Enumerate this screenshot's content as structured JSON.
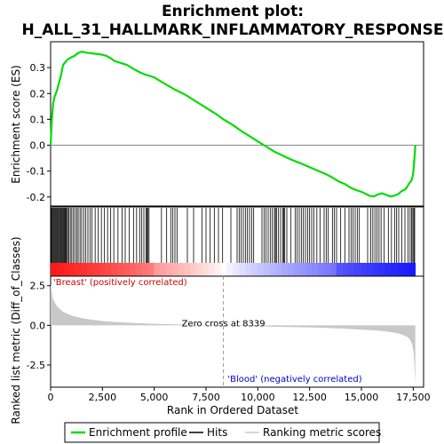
{
  "chart_data": {
    "type": "line",
    "title_line1": "Enrichment plot:",
    "title_line2": "H_ALL_31_HALLMARK_INFLAMMATORY_RESPONSE",
    "xlabel": "Rank in Ordered Dataset",
    "ylabel_top": "Enrichment score (ES)",
    "ylabel_bottom": "Ranked list metric (Diff_of_Classes)",
    "xlim": [
      0,
      18000
    ],
    "x_ticks": [
      0,
      2500,
      5000,
      7500,
      10000,
      12500,
      15000,
      17500
    ],
    "x_tick_labels": [
      "0",
      "2,500",
      "5,000",
      "7,500",
      "10,000",
      "12,500",
      "15,000",
      "17,500"
    ],
    "es_ylim": [
      -0.235,
      0.4
    ],
    "es_ticks": [
      -0.2,
      -0.1,
      0.0,
      0.1,
      0.2,
      0.3
    ],
    "es_tick_labels": [
      "-0.2",
      "-0.1",
      "0.0",
      "0.1",
      "0.2",
      "0.3"
    ],
    "metric_ylim": [
      -3.9,
      3.1
    ],
    "metric_ticks": [
      -2.5,
      0.0,
      2.5
    ],
    "metric_tick_labels": [
      "-2.5",
      "0.0",
      "2.5"
    ],
    "n_genes": 17600,
    "zero_cross": 8339,
    "zero_cross_label": "Zero cross at 8339",
    "pos_label": "'Breast' (positively correlated)",
    "neg_label": "'Blood' (negatively correlated)",
    "legend": {
      "enrichment": "Enrichment profile",
      "hits": "Hits",
      "metric": "Ranking metric scores"
    },
    "colors": {
      "es_line": "#00dd00",
      "pos_label": "#cc0000",
      "neg_label": "#0000cc",
      "hits": "#000000",
      "metric_fill": "#c8c8c8"
    },
    "es_curve": {
      "x": [
        0,
        60,
        120,
        200,
        300,
        400,
        500,
        600,
        700,
        800,
        900,
        1000,
        1150,
        1300,
        1500,
        1700,
        1900,
        2100,
        2300,
        2500,
        2700,
        2900,
        3100,
        3400,
        3700,
        4000,
        4300,
        4600,
        4800,
        5000,
        5500,
        6000,
        6500,
        7000,
        7500,
        8000,
        8339,
        8800,
        9200,
        9600,
        10000,
        10400,
        10800,
        11200,
        11600,
        12000,
        12500,
        13000,
        13300,
        13600,
        13900,
        14200,
        14500,
        14800,
        15000,
        15200,
        15400,
        15600,
        15800,
        16000,
        16200,
        16400,
        16600,
        16800,
        16900,
        17000,
        17100,
        17200,
        17300,
        17400,
        17450,
        17500,
        17550,
        17600
      ],
      "y": [
        0.0,
        0.1,
        0.16,
        0.19,
        0.21,
        0.24,
        0.27,
        0.31,
        0.32,
        0.33,
        0.335,
        0.34,
        0.345,
        0.355,
        0.362,
        0.358,
        0.356,
        0.354,
        0.352,
        0.35,
        0.345,
        0.336,
        0.325,
        0.318,
        0.31,
        0.295,
        0.282,
        0.272,
        0.268,
        0.262,
        0.238,
        0.215,
        0.195,
        0.17,
        0.145,
        0.12,
        0.1,
        0.078,
        0.055,
        0.035,
        0.015,
        -0.005,
        -0.025,
        -0.04,
        -0.055,
        -0.068,
        -0.085,
        -0.102,
        -0.112,
        -0.125,
        -0.14,
        -0.15,
        -0.165,
        -0.175,
        -0.18,
        -0.188,
        -0.196,
        -0.198,
        -0.19,
        -0.186,
        -0.192,
        -0.198,
        -0.195,
        -0.188,
        -0.18,
        -0.175,
        -0.172,
        -0.162,
        -0.148,
        -0.138,
        -0.128,
        -0.11,
        -0.06,
        0.0
      ]
    },
    "metric_curve": {
      "x": [
        0,
        100,
        300,
        600,
        1000,
        1500,
        2000,
        2500,
        3000,
        4000,
        5000,
        6000,
        7000,
        8339,
        9000,
        10000,
        11000,
        12000,
        13000,
        14000,
        15000,
        15500,
        16000,
        16500,
        16800,
        17000,
        17200,
        17350,
        17450,
        17520,
        17560,
        17600
      ],
      "y": [
        2.6,
        1.7,
        1.2,
        0.85,
        0.62,
        0.45,
        0.35,
        0.27,
        0.22,
        0.15,
        0.1,
        0.06,
        0.03,
        0.0,
        -0.03,
        -0.06,
        -0.09,
        -0.12,
        -0.15,
        -0.2,
        -0.27,
        -0.31,
        -0.36,
        -0.44,
        -0.52,
        -0.6,
        -0.72,
        -0.9,
        -1.2,
        -1.7,
        -2.5,
        -3.7
      ]
    },
    "hits": [
      30,
      70,
      110,
      150,
      190,
      240,
      280,
      320,
      360,
      400,
      450,
      490,
      530,
      570,
      610,
      650,
      690,
      730,
      770,
      820,
      880,
      950,
      1020,
      1100,
      1180,
      1260,
      1330,
      1420,
      1500,
      1600,
      1700,
      1800,
      1900,
      2000,
      2150,
      2300,
      2450,
      2600,
      2750,
      2900,
      3050,
      3250,
      3450,
      3600,
      3800,
      4000,
      4150,
      4300,
      4400,
      4500,
      4600,
      4650,
      4700,
      4750,
      5350,
      5600,
      5800,
      5900,
      6000,
      6100,
      6600,
      6900,
      7300,
      7500,
      7700,
      7900,
      8100,
      8300,
      8700,
      9000,
      9100,
      9200,
      9300,
      9400,
      9500,
      9600,
      9700,
      9800,
      10200,
      10300,
      10400,
      10500,
      10600,
      10700,
      10800,
      10850,
      10900,
      11000,
      11100,
      11200,
      11250,
      11300,
      11400,
      11600,
      11800,
      11900,
      12000,
      12100,
      12200,
      12300,
      12400,
      12500,
      12600,
      12700,
      12850,
      13000,
      13200,
      13300,
      13400,
      13600,
      13700,
      13800,
      14000,
      14200,
      14400,
      14500,
      14600,
      14700,
      14800,
      14900,
      15300,
      15450,
      15550,
      15650,
      15750,
      15850,
      15950,
      16100,
      16300,
      16450,
      16600,
      16700,
      16800,
      16950,
      17100,
      17250,
      17350,
      17420,
      17480,
      17530,
      17570
    ]
  }
}
